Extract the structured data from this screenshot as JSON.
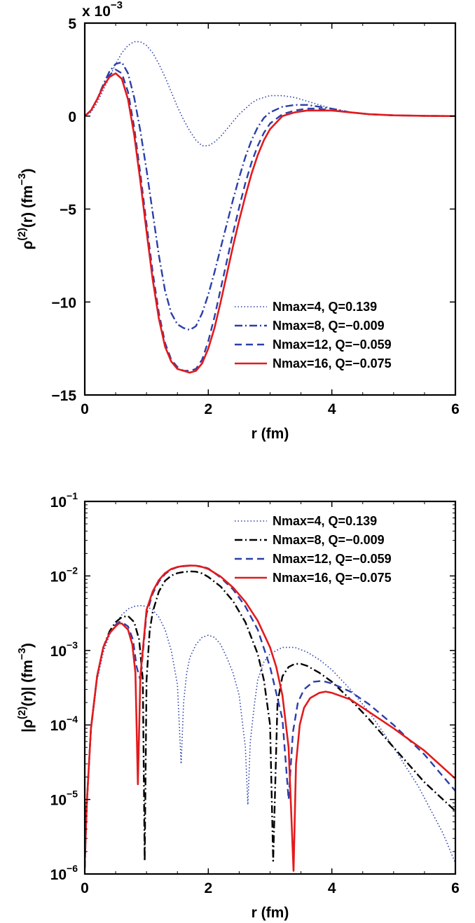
{
  "chart_data": [
    {
      "type": "line",
      "xlabel": "r (fm)",
      "ylabel_main": "ρ",
      "ylabel_sup": "(2)",
      "ylabel_rest": "(r) (fm",
      "ylabel_unit_sup": "−3",
      "ylabel_close": ")",
      "xlim": [
        0,
        6
      ],
      "ylim": [
        -0.015,
        0.005
      ],
      "y_scale": "linear",
      "y_multiplier_text": "x 10",
      "y_multiplier_exp": "−3",
      "xticks": [
        0,
        2,
        4,
        6
      ],
      "xtick_labels": [
        "0",
        "2",
        "4",
        "6"
      ],
      "yticks": [
        0.005,
        0,
        -0.005,
        -0.01,
        -0.015
      ],
      "ytick_labels": [
        "5",
        "0",
        "−5",
        "−10",
        "−15"
      ],
      "legend_position": "bottom-right",
      "series": [
        {
          "name": "Nmax=4, Q=0.139",
          "color": "#2B3FA8",
          "style": "dotted",
          "x": [
            0,
            0.1,
            0.2,
            0.3,
            0.4,
            0.5,
            0.6,
            0.7,
            0.8,
            0.9,
            1.0,
            1.1,
            1.2,
            1.3,
            1.4,
            1.5,
            1.6,
            1.7,
            1.8,
            1.9,
            2.0,
            2.1,
            2.2,
            2.3,
            2.4,
            2.5,
            2.6,
            2.7,
            2.8,
            2.9,
            3.0,
            3.2,
            3.4,
            3.6,
            3.8,
            4.0,
            4.3,
            4.6,
            5.0,
            5.5,
            6.0
          ],
          "y": [
            0,
            0.0002,
            0.0007,
            0.0014,
            0.0021,
            0.0028,
            0.0034,
            0.0038,
            0.004,
            0.004,
            0.0038,
            0.0034,
            0.0028,
            0.0021,
            0.0013,
            0.0005,
            -0.0002,
            -0.0008,
            -0.0013,
            -0.0016,
            -0.0016,
            -0.0014,
            -0.0011,
            -0.0007,
            -0.0003,
            0.0001,
            0.0004,
            0.0007,
            0.0009,
            0.001,
            0.0011,
            0.0011,
            0.001,
            0.0008,
            0.0006,
            0.0004,
            0.0002,
            0.0001,
            4e-05,
            1e-05,
            0
          ]
        },
        {
          "name": "Nmax=8, Q=−0.009",
          "color": "#2B3FA8",
          "style": "dashdot",
          "x": [
            0,
            0.1,
            0.2,
            0.3,
            0.4,
            0.5,
            0.6,
            0.7,
            0.8,
            0.9,
            1.0,
            1.1,
            1.2,
            1.3,
            1.4,
            1.5,
            1.6,
            1.7,
            1.8,
            1.9,
            2.0,
            2.1,
            2.2,
            2.3,
            2.4,
            2.5,
            2.6,
            2.7,
            2.8,
            2.9,
            3.0,
            3.2,
            3.4,
            3.6,
            3.8,
            4.0,
            4.3,
            4.6,
            5.0,
            5.5,
            6.0
          ],
          "y": [
            0,
            0.0003,
            0.0009,
            0.0017,
            0.0024,
            0.0028,
            0.0029,
            0.0023,
            0.001,
            -0.0008,
            -0.0029,
            -0.0052,
            -0.0075,
            -0.0094,
            -0.0106,
            -0.0112,
            -0.0114,
            -0.0115,
            -0.0113,
            -0.0106,
            -0.0096,
            -0.0084,
            -0.0071,
            -0.0058,
            -0.0045,
            -0.0033,
            -0.0022,
            -0.0013,
            -0.0006,
            -0.0001,
            0.0002,
            0.0005,
            0.0006,
            0.0006,
            0.0005,
            0.0004,
            0.0002,
            0.0001,
            4e-05,
            1e-05,
            0
          ]
        },
        {
          "name": "Nmax=12, Q=−0.059",
          "color": "#2B3FA8",
          "style": "dashed",
          "x": [
            0,
            0.1,
            0.2,
            0.3,
            0.4,
            0.5,
            0.6,
            0.7,
            0.8,
            0.9,
            1.0,
            1.1,
            1.2,
            1.3,
            1.4,
            1.5,
            1.6,
            1.7,
            1.8,
            1.9,
            2.0,
            2.1,
            2.2,
            2.3,
            2.4,
            2.5,
            2.6,
            2.7,
            2.8,
            2.9,
            3.0,
            3.2,
            3.4,
            3.6,
            3.8,
            4.0,
            4.3,
            4.6,
            5.0,
            5.5,
            6.0
          ],
          "y": [
            0,
            0.0003,
            0.0009,
            0.0016,
            0.0022,
            0.0025,
            0.0023,
            0.0013,
            -0.0006,
            -0.0031,
            -0.0058,
            -0.0084,
            -0.0106,
            -0.0122,
            -0.0131,
            -0.0135,
            -0.0137,
            -0.0137,
            -0.0136,
            -0.0131,
            -0.0121,
            -0.0108,
            -0.0093,
            -0.0078,
            -0.0063,
            -0.0049,
            -0.0036,
            -0.0025,
            -0.0016,
            -0.0009,
            -0.0004,
            0.0001,
            0.0003,
            0.0004,
            0.0004,
            0.0003,
            0.0002,
            0.0001,
            4e-05,
            1e-05,
            0
          ]
        },
        {
          "name": "Nmax=16, Q=−0.075",
          "color": "#E31A1C",
          "style": "solid",
          "x": [
            0,
            0.1,
            0.2,
            0.3,
            0.4,
            0.5,
            0.6,
            0.7,
            0.8,
            0.9,
            1.0,
            1.1,
            1.2,
            1.3,
            1.4,
            1.5,
            1.6,
            1.7,
            1.8,
            1.9,
            2.0,
            2.1,
            2.2,
            2.3,
            2.4,
            2.5,
            2.6,
            2.7,
            2.8,
            2.9,
            3.0,
            3.2,
            3.4,
            3.6,
            3.8,
            4.0,
            4.3,
            4.6,
            5.0,
            5.5,
            6.0
          ],
          "y": [
            0,
            0.0003,
            0.0009,
            0.0016,
            0.0021,
            0.0023,
            0.002,
            0.0009,
            -0.001,
            -0.0035,
            -0.0062,
            -0.0088,
            -0.0109,
            -0.0124,
            -0.0132,
            -0.0136,
            -0.0137,
            -0.0138,
            -0.0137,
            -0.0133,
            -0.0125,
            -0.0114,
            -0.01,
            -0.0085,
            -0.007,
            -0.0056,
            -0.0043,
            -0.0031,
            -0.0021,
            -0.0013,
            -0.0007,
            0,
            0.0002,
            0.0003,
            0.0003,
            0.0003,
            0.0002,
            0.0001,
            4e-05,
            1e-05,
            0
          ]
        }
      ]
    },
    {
      "type": "line",
      "xlabel": "r (fm)",
      "ylabel_main": "|ρ",
      "ylabel_sup": "(2)",
      "ylabel_rest": "(r)| (fm",
      "ylabel_unit_sup": "−3",
      "ylabel_close": ")",
      "xlim": [
        0,
        6
      ],
      "ylim": [
        1e-06,
        0.1
      ],
      "y_scale": "log",
      "xticks": [
        0,
        2,
        4,
        6
      ],
      "xtick_labels": [
        "0",
        "2",
        "4",
        "6"
      ],
      "yticks": [
        0.1,
        0.01,
        0.001,
        0.0001,
        1e-05,
        1e-06
      ],
      "ytick_base": "10",
      "ytick_exps": [
        "−1",
        "−2",
        "−3",
        "−4",
        "−5",
        "−6"
      ],
      "legend_position": "top-right",
      "series": [
        {
          "name": "Nmax=4, Q=0.139",
          "color": "#2B3FA8",
          "style": "dotted",
          "x": [
            0,
            0.03,
            0.1,
            0.2,
            0.3,
            0.4,
            0.5,
            0.6,
            0.7,
            0.8,
            0.9,
            1.0,
            1.1,
            1.2,
            1.3,
            1.4,
            1.5,
            1.56,
            1.6,
            1.65,
            1.7,
            1.8,
            1.9,
            2.0,
            2.1,
            2.2,
            2.3,
            2.4,
            2.5,
            2.6,
            2.64,
            2.68,
            2.75,
            2.8,
            2.9,
            3.0,
            3.2,
            3.4,
            3.6,
            3.8,
            4.0,
            4.3,
            4.6,
            5.0,
            5.4,
            5.8,
            6.0
          ],
          "y": [
            1.2e-06,
            8e-06,
            8e-05,
            0.0004,
            0.00095,
            0.0016,
            0.0023,
            0.003,
            0.0036,
            0.0039,
            0.004,
            0.0039,
            0.0035,
            0.0028,
            0.0019,
            0.001,
            0.00035,
            3e-05,
            0.0002,
            0.0005,
            0.0008,
            0.0012,
            0.0015,
            0.0016,
            0.0015,
            0.0012,
            0.0008,
            0.0005,
            0.00025,
            5e-05,
            8.5e-06,
            6e-05,
            0.0002,
            0.0004,
            0.0007,
            0.0009,
            0.0011,
            0.0011,
            0.00095,
            0.00075,
            0.00055,
            0.0003,
            0.00015,
            5e-05,
            1.5e-05,
            3.5e-06,
            1.4e-06
          ]
        },
        {
          "name": "Nmax=8, Q=−0.009",
          "color": "#000000",
          "style": "dashdot",
          "x": [
            0,
            0.03,
            0.1,
            0.2,
            0.3,
            0.4,
            0.5,
            0.6,
            0.7,
            0.8,
            0.88,
            0.94,
            0.97,
            1.0,
            1.05,
            1.1,
            1.2,
            1.3,
            1.4,
            1.5,
            1.6,
            1.7,
            1.8,
            1.9,
            2.0,
            2.2,
            2.4,
            2.6,
            2.8,
            2.9,
            3.0,
            3.05,
            3.12,
            3.2,
            3.3,
            3.4,
            3.5,
            3.6,
            3.8,
            4.0,
            4.3,
            4.6,
            5.0,
            5.5,
            6.0
          ],
          "y": [
            1.2e-06,
            8e-06,
            9e-05,
            0.00045,
            0.0011,
            0.0018,
            0.0024,
            0.0028,
            0.0029,
            0.0024,
            0.0014,
            0.0004,
            1.5e-06,
            0.0004,
            0.0018,
            0.0033,
            0.0062,
            0.0086,
            0.0101,
            0.0109,
            0.0113,
            0.0115,
            0.0114,
            0.0108,
            0.0097,
            0.0072,
            0.0046,
            0.0024,
            0.0009,
            0.0004,
            0.0001,
            1.5e-06,
            0.0002,
            0.00045,
            0.0006,
            0.00066,
            0.00066,
            0.00062,
            0.0005,
            0.00038,
            0.00022,
            0.00012,
            5e-05,
            1.7e-05,
            7e-06
          ]
        },
        {
          "name": "Nmax=12, Q=−0.059",
          "color": "#2B3FA8",
          "style": "dashed",
          "x": [
            0,
            0.03,
            0.1,
            0.2,
            0.3,
            0.4,
            0.5,
            0.55,
            0.6,
            0.7,
            0.78,
            0.84,
            0.9,
            1.0,
            1.1,
            1.2,
            1.3,
            1.4,
            1.5,
            1.6,
            1.7,
            1.8,
            1.9,
            2.0,
            2.2,
            2.4,
            2.6,
            2.8,
            3.0,
            3.2,
            3.3,
            3.37,
            3.45,
            3.55,
            3.7,
            3.85,
            4.0,
            4.3,
            4.6,
            5.0,
            5.5,
            6.0
          ],
          "y": [
            1.2e-06,
            8e-06,
            9e-05,
            0.00045,
            0.0011,
            0.0017,
            0.0022,
            0.0024,
            0.0024,
            0.0021,
            0.0014,
            0.0006,
            0.0004,
            0.0031,
            0.0058,
            0.0084,
            0.0106,
            0.0122,
            0.0131,
            0.0135,
            0.0137,
            0.0137,
            0.0134,
            0.0126,
            0.0095,
            0.0066,
            0.0039,
            0.0019,
            0.0006,
            0.00012,
            1e-05,
            8e-05,
            0.0002,
            0.0003,
            0.00038,
            0.00039,
            0.00036,
            0.00028,
            0.00019,
            0.0001,
            4e-05,
            1.3e-05
          ]
        },
        {
          "name": "Nmax=16, Q=−0.075",
          "color": "#E31A1C",
          "style": "solid",
          "x": [
            0,
            0.03,
            0.1,
            0.2,
            0.3,
            0.4,
            0.5,
            0.55,
            0.6,
            0.7,
            0.77,
            0.82,
            0.86,
            0.9,
            1.0,
            1.1,
            1.2,
            1.3,
            1.4,
            1.5,
            1.6,
            1.7,
            1.8,
            1.9,
            2.0,
            2.2,
            2.4,
            2.6,
            2.8,
            3.0,
            3.1,
            3.2,
            3.3,
            3.38,
            3.42,
            3.48,
            3.55,
            3.65,
            3.8,
            3.9,
            4.0,
            4.3,
            4.6,
            5.0,
            5.5,
            6.0
          ],
          "y": [
            1.5e-06,
            8e-06,
            9e-05,
            0.00045,
            0.0011,
            0.0017,
            0.0021,
            0.0023,
            0.0023,
            0.0019,
            0.0012,
            0.0005,
            1.6e-05,
            0.00045,
            0.0035,
            0.0062,
            0.0088,
            0.0109,
            0.0124,
            0.0132,
            0.0136,
            0.0138,
            0.0137,
            0.0132,
            0.0124,
            0.0098,
            0.007,
            0.0045,
            0.0025,
            0.0011,
            0.0006,
            0.00025,
            5e-05,
            1.1e-06,
            3e-05,
            0.0001,
            0.00017,
            0.00023,
            0.00027,
            0.00028,
            0.00027,
            0.00022,
            0.00015,
            9e-05,
            4.5e-05,
            1.9e-05
          ]
        }
      ]
    }
  ]
}
